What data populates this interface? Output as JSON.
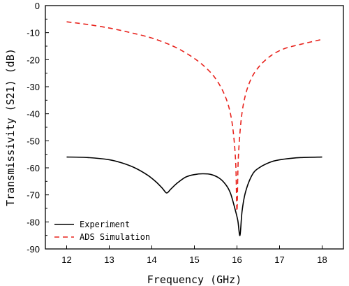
{
  "chart_data": {
    "type": "line",
    "xlabel": "Frequency (GHz)",
    "ylabel": "Transmissivity (S21) (dB)",
    "xlim": [
      11.5,
      18.5
    ],
    "ylim": [
      -90,
      0
    ],
    "xticks": [
      12,
      13,
      14,
      15,
      16,
      17,
      18
    ],
    "yticks": [
      0,
      -10,
      -20,
      -30,
      -40,
      -50,
      -60,
      -70,
      -80,
      -90
    ],
    "grid": false,
    "legend_position": "bottom-left",
    "series": [
      {
        "name": "Experiment",
        "color": "#000000",
        "dash": "solid",
        "x": [
          12.0,
          12.5,
          13.0,
          13.3,
          13.6,
          13.9,
          14.1,
          14.25,
          14.35,
          14.45,
          14.6,
          14.8,
          15.0,
          15.2,
          15.4,
          15.6,
          15.75,
          15.85,
          15.95,
          16.02,
          16.07,
          16.12,
          16.2,
          16.35,
          16.5,
          16.8,
          17.1,
          17.5,
          18.0
        ],
        "y": [
          -56,
          -56.2,
          -57,
          -58.2,
          -60,
          -62.7,
          -65.2,
          -67.6,
          -69.3,
          -67.8,
          -65.6,
          -63.4,
          -62.5,
          -62.2,
          -62.5,
          -64,
          -66.5,
          -69.5,
          -75,
          -79.5,
          -85,
          -76,
          -69,
          -62.8,
          -60.2,
          -57.8,
          -56.8,
          -56.2,
          -56
        ]
      },
      {
        "name": "ADS Simulation",
        "color": "#e8231d",
        "dash": "dashed",
        "x": [
          12.0,
          12.5,
          13.0,
          13.5,
          14.0,
          14.5,
          14.9,
          15.2,
          15.45,
          15.65,
          15.8,
          15.9,
          15.97,
          16.0,
          16.03,
          16.1,
          16.2,
          16.35,
          16.55,
          16.8,
          17.1,
          17.5,
          18.0
        ],
        "y": [
          -6,
          -7,
          -8.3,
          -10,
          -12,
          -15,
          -18.5,
          -22,
          -26,
          -31,
          -37,
          -45,
          -58,
          -76,
          -57,
          -42,
          -33,
          -26.5,
          -22,
          -18.5,
          -16,
          -14.3,
          -12.5
        ]
      }
    ]
  }
}
